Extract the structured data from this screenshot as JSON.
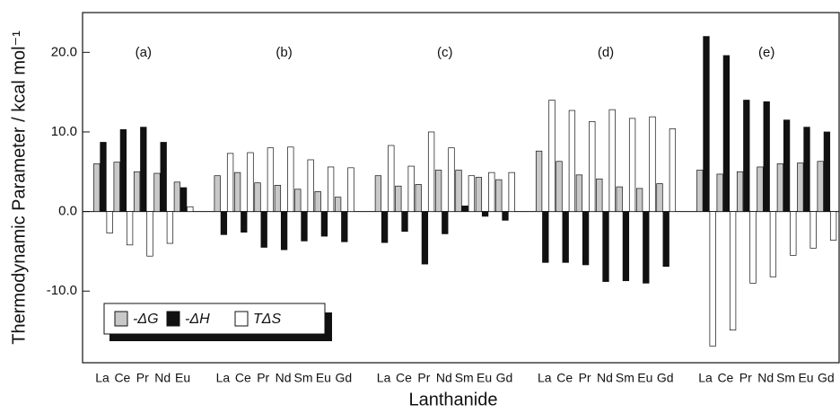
{
  "chart_data": {
    "type": "bar",
    "y_label": "Thermodynamic Parameter / kcal mol⁻¹",
    "x_label": "Lanthanide",
    "ylim": [
      -19,
      25
    ],
    "yticks": [
      {
        "value": -10,
        "label": "-10.0"
      },
      {
        "value": 0,
        "label": "0.0"
      },
      {
        "value": 10,
        "label": "10.0"
      },
      {
        "value": 20,
        "label": "20.0"
      }
    ],
    "panels": [
      {
        "label": "(a)",
        "categories": [
          "La",
          "Ce",
          "Pr",
          "Nd",
          "Eu"
        ]
      },
      {
        "label": "(b)",
        "categories": [
          "La",
          "Ce",
          "Pr",
          "Nd",
          "Sm",
          "Eu",
          "Gd"
        ]
      },
      {
        "label": "(c)",
        "categories": [
          "La",
          "Ce",
          "Pr",
          "Nd",
          "Sm",
          "Eu",
          "Gd"
        ]
      },
      {
        "label": "(d)",
        "categories": [
          "La",
          "Ce",
          "Pr",
          "Nd",
          "Sm",
          "Eu",
          "Gd"
        ]
      },
      {
        "label": "(e)",
        "categories": [
          "La",
          "Ce",
          "Pr",
          "Nd",
          "Sm",
          "Eu",
          "Gd"
        ]
      }
    ],
    "series": [
      {
        "name": "-ΔG",
        "color": "#c8c8c8",
        "values": [
          6.0,
          6.2,
          5.0,
          4.8,
          3.7,
          4.5,
          4.9,
          3.6,
          3.3,
          2.8,
          2.5,
          1.8,
          4.5,
          3.2,
          3.4,
          5.2,
          5.2,
          4.3,
          4.0,
          7.6,
          6.3,
          4.6,
          4.1,
          3.1,
          2.9,
          3.5,
          5.2,
          4.7,
          5.0,
          5.6,
          6.0,
          6.1,
          6.3
        ]
      },
      {
        "name": "-ΔH",
        "color": "#111111",
        "values": [
          8.7,
          10.3,
          10.6,
          8.7,
          3.0,
          -2.9,
          -2.6,
          -4.5,
          -4.8,
          -3.7,
          -3.1,
          -3.8,
          -3.9,
          -2.5,
          -6.6,
          -2.8,
          0.7,
          -0.6,
          -1.1,
          -6.4,
          -6.4,
          -6.7,
          -8.8,
          -8.7,
          -9.0,
          -6.9,
          22.0,
          19.6,
          14.0,
          13.8,
          11.5,
          10.6,
          10.0
        ]
      },
      {
        "name": "TΔS",
        "color": "#ffffff",
        "values": [
          -2.7,
          -4.2,
          -5.6,
          -4.0,
          0.6,
          7.3,
          7.4,
          8.0,
          8.1,
          6.5,
          5.6,
          5.5,
          8.3,
          5.7,
          10.0,
          8.0,
          4.5,
          4.9,
          4.9,
          14.0,
          12.7,
          11.3,
          12.8,
          11.7,
          11.9,
          10.4,
          -16.9,
          -14.9,
          -9.0,
          -8.2,
          -5.5,
          -4.6,
          -3.6
        ]
      }
    ]
  }
}
